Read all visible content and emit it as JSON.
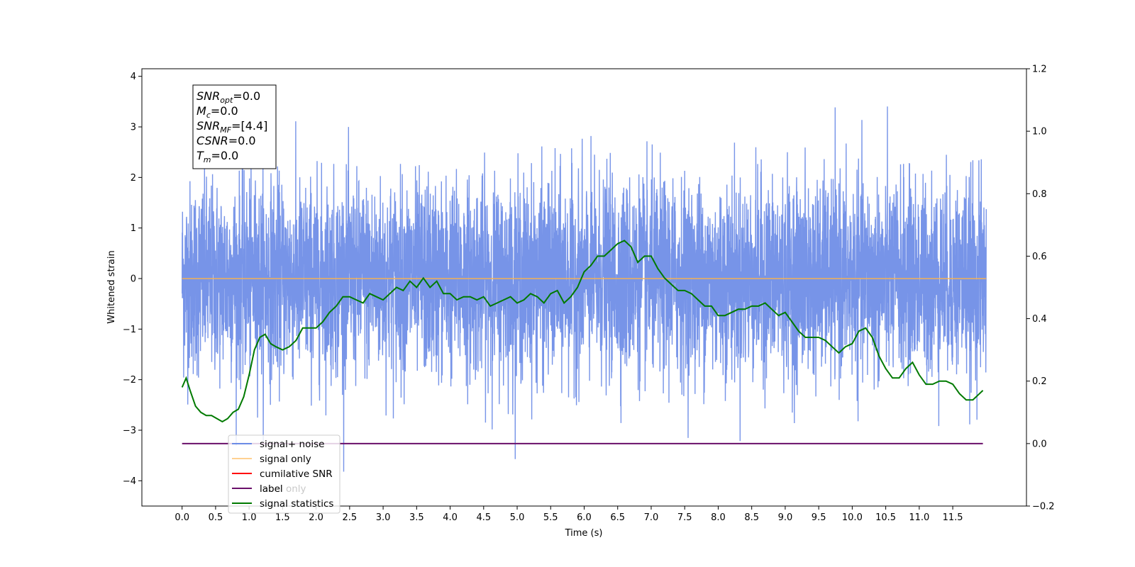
{
  "chart_data": {
    "type": "line",
    "xlabel": "Time (s)",
    "ylabel": "Whitened strain",
    "xlim": [
      -0.6,
      12.6
    ],
    "ylim": [
      -4.5,
      4.15
    ],
    "y2lim": [
      -0.2,
      1.2
    ],
    "x_ticks": [
      0.0,
      0.5,
      1.0,
      1.5,
      2.0,
      2.5,
      3.0,
      3.5,
      4.0,
      4.5,
      5.0,
      5.5,
      6.0,
      6.5,
      7.0,
      7.5,
      8.0,
      8.5,
      9.0,
      9.5,
      10.0,
      10.5,
      11.0,
      11.5
    ],
    "x_tick_labels": [
      "0.0",
      "0.5",
      "1.0",
      "1.5",
      "2.0",
      "2.5",
      "3.0",
      "3.5",
      "4.0",
      "4.5",
      "5.0",
      "5.5",
      "6.0",
      "6.5",
      "7.0",
      "7.5",
      "8.0",
      "8.5",
      "9.0",
      "9.5",
      "10.0",
      "10.5",
      "11.0",
      "11.5"
    ],
    "y_ticks": [
      -4,
      -3,
      -2,
      -1,
      0,
      1,
      2,
      3,
      4
    ],
    "y_tick_labels": [
      "−4",
      "−3",
      "−2",
      "−1",
      "0",
      "1",
      "2",
      "3",
      "4"
    ],
    "y2_ticks": [
      -0.2,
      0.0,
      0.2,
      0.4,
      0.6,
      0.8,
      1.0,
      1.2
    ],
    "y2_tick_labels": [
      "−0.2",
      "0.0",
      "0.2",
      "0.4",
      "0.6",
      "0.8",
      "1.0",
      "1.2"
    ],
    "grid": false,
    "legend_position": "lower-left",
    "colors": {
      "noise": "#6b8be6",
      "signal": "#ffb347",
      "cumsnr": "#ff0000",
      "label": "#6a0f6a",
      "stats": "#007a00"
    },
    "series": [
      {
        "name": "signal+ noise",
        "key": "noise",
        "axis": "left",
        "description_values": {
          "x_range": [
            0.0,
            12.0
          ],
          "typical_min": -2.0,
          "typical_max": 2.0,
          "peak_max": 3.52,
          "peak_min": -4.1
        }
      },
      {
        "name": "signal only",
        "key": "signal",
        "axis": "left",
        "x": [
          0.0,
          12.0
        ],
        "y": [
          0.0,
          0.0
        ]
      },
      {
        "name": "cumilative SNR",
        "key": "cumsnr",
        "axis": "right",
        "x": [],
        "y": []
      },
      {
        "name": "label",
        "key": "label",
        "axis": "right",
        "x": [
          0.0,
          11.95
        ],
        "y": [
          0.0,
          0.0
        ]
      },
      {
        "name": "signal statistics",
        "key": "stats",
        "axis": "right",
        "x": [
          0.0,
          0.06,
          0.12,
          0.2,
          0.28,
          0.36,
          0.44,
          0.52,
          0.6,
          0.68,
          0.76,
          0.84,
          0.92,
          1.0,
          1.08,
          1.16,
          1.24,
          1.32,
          1.4,
          1.5,
          1.6,
          1.7,
          1.8,
          1.9,
          2.0,
          2.1,
          2.2,
          2.3,
          2.4,
          2.5,
          2.6,
          2.7,
          2.8,
          2.9,
          3.0,
          3.1,
          3.2,
          3.3,
          3.4,
          3.5,
          3.6,
          3.7,
          3.8,
          3.9,
          4.0,
          4.1,
          4.2,
          4.3,
          4.4,
          4.5,
          4.6,
          4.7,
          4.8,
          4.9,
          5.0,
          5.1,
          5.2,
          5.3,
          5.4,
          5.5,
          5.6,
          5.7,
          5.8,
          5.9,
          6.0,
          6.1,
          6.2,
          6.3,
          6.4,
          6.5,
          6.6,
          6.7,
          6.8,
          6.9,
          7.0,
          7.1,
          7.2,
          7.3,
          7.4,
          7.5,
          7.6,
          7.7,
          7.8,
          7.9,
          8.0,
          8.1,
          8.2,
          8.3,
          8.4,
          8.5,
          8.6,
          8.7,
          8.8,
          8.9,
          9.0,
          9.1,
          9.2,
          9.3,
          9.4,
          9.5,
          9.6,
          9.7,
          9.8,
          9.9,
          10.0,
          10.1,
          10.2,
          10.3,
          10.4,
          10.5,
          10.6,
          10.7,
          10.8,
          10.9,
          11.0,
          11.1,
          11.2,
          11.3,
          11.4,
          11.5,
          11.6,
          11.7,
          11.8,
          11.9,
          11.95
        ],
        "y": [
          0.18,
          0.21,
          0.17,
          0.12,
          0.1,
          0.09,
          0.09,
          0.08,
          0.07,
          0.08,
          0.1,
          0.11,
          0.15,
          0.22,
          0.3,
          0.34,
          0.35,
          0.32,
          0.31,
          0.3,
          0.31,
          0.33,
          0.37,
          0.37,
          0.37,
          0.39,
          0.42,
          0.44,
          0.47,
          0.47,
          0.46,
          0.45,
          0.48,
          0.47,
          0.46,
          0.48,
          0.5,
          0.49,
          0.52,
          0.5,
          0.53,
          0.5,
          0.52,
          0.48,
          0.48,
          0.46,
          0.47,
          0.47,
          0.46,
          0.47,
          0.44,
          0.45,
          0.46,
          0.47,
          0.45,
          0.46,
          0.48,
          0.47,
          0.45,
          0.48,
          0.49,
          0.45,
          0.47,
          0.5,
          0.55,
          0.57,
          0.6,
          0.6,
          0.62,
          0.64,
          0.65,
          0.63,
          0.58,
          0.6,
          0.6,
          0.56,
          0.53,
          0.51,
          0.49,
          0.49,
          0.48,
          0.46,
          0.44,
          0.44,
          0.41,
          0.41,
          0.42,
          0.43,
          0.43,
          0.44,
          0.44,
          0.45,
          0.43,
          0.41,
          0.42,
          0.39,
          0.36,
          0.34,
          0.34,
          0.34,
          0.33,
          0.31,
          0.29,
          0.31,
          0.32,
          0.36,
          0.37,
          0.34,
          0.28,
          0.24,
          0.21,
          0.21,
          0.24,
          0.26,
          0.22,
          0.19,
          0.19,
          0.2,
          0.2,
          0.19,
          0.16,
          0.14,
          0.14,
          0.16,
          0.17
        ]
      }
    ]
  },
  "annotation": {
    "lines": [
      {
        "base": "SNR",
        "sub": "opt",
        "value": "=0.0"
      },
      {
        "base": "M",
        "sub": "c",
        "value": "=0.0"
      },
      {
        "base": "SNR",
        "sub": "MF",
        "value": "=[4.4]"
      },
      {
        "base": "CSNR",
        "sub": "",
        "value": "=0.0"
      },
      {
        "base": "T",
        "sub": "m",
        "value": "=0.0"
      }
    ]
  },
  "legend": {
    "items": [
      {
        "label": "signal+ noise",
        "key": "noise"
      },
      {
        "label": "signal only",
        "key": "signal"
      },
      {
        "label": "cumilative SNR",
        "key": "cumsnr"
      },
      {
        "label": "label",
        "key": "label"
      },
      {
        "label": "signal statistics",
        "key": "stats"
      }
    ],
    "ghost_text": "label only"
  }
}
